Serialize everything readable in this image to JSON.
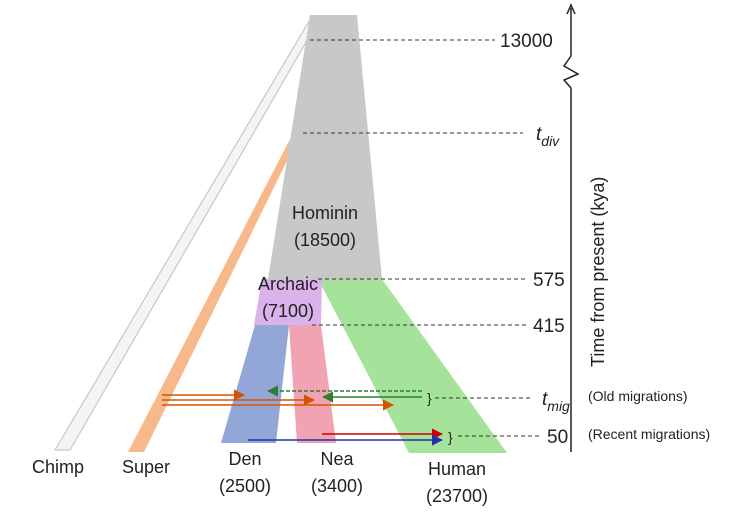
{
  "colors": {
    "hominin": "#c8c8c8",
    "archaic": "#dab2ec",
    "den": "#93a6d8",
    "nea": "#f2a3b3",
    "human": "#a6e39a",
    "super": "#f7b98c",
    "chimp": "#e6e6e6",
    "arrow_orange": "#d35400",
    "arrow_green": "#2e7d32",
    "arrow_red": "#d00000",
    "arrow_blue": "#2233aa"
  },
  "populations": {
    "hominin": {
      "name": "Hominin",
      "size": "(18500)"
    },
    "archaic": {
      "name": "Archaic",
      "size": "(7100)"
    },
    "den": {
      "name": "Den",
      "size": "(2500)"
    },
    "nea": {
      "name": "Nea",
      "size": "(3400)"
    },
    "human": {
      "name": "Human",
      "size": "(23700)"
    },
    "chimp": {
      "name": "Chimp"
    },
    "super": {
      "name": "Super"
    }
  },
  "time_axis": {
    "label": "Time from present (kya)",
    "ticks": {
      "t13000": "13000",
      "tdiv_main": "t",
      "tdiv_sub": "div",
      "t575": "575",
      "t415": "415",
      "tmig_main": "t",
      "tmig_sub": "mig",
      "t50": "50"
    }
  },
  "annotations": {
    "old_migrations": "(Old migrations)",
    "recent_migrations": "(Recent migrations)",
    "brace": "}"
  }
}
